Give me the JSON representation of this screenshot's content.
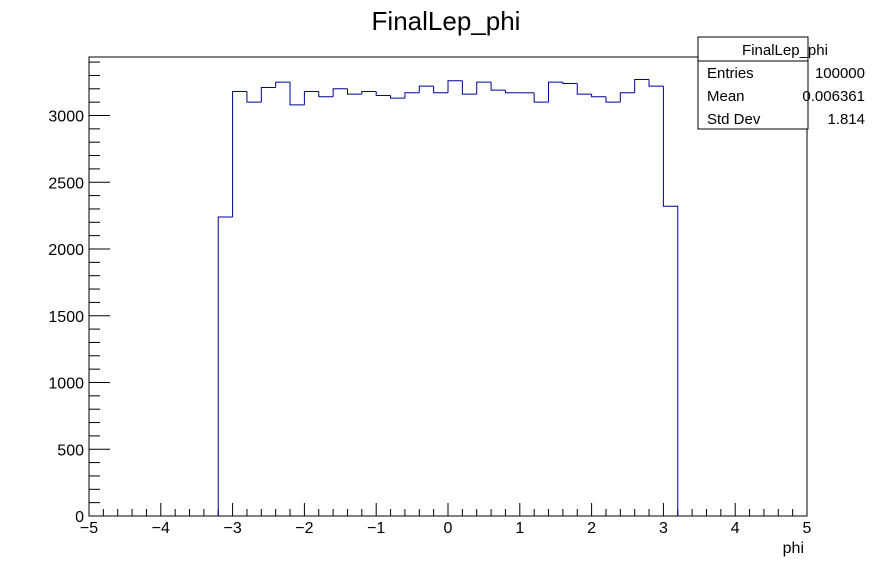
{
  "chart_data": {
    "type": "bar",
    "title": "FinalLep_phi",
    "xlabel": "phi",
    "ylabel": "",
    "xlim": [
      -5,
      5
    ],
    "ylim": [
      0,
      3400
    ],
    "x_ticks": [
      "−5",
      "−4",
      "−3",
      "−2",
      "−1",
      "0",
      "1",
      "2",
      "3",
      "4",
      "5"
    ],
    "y_ticks": [
      "0",
      "500",
      "1000",
      "1500",
      "2000",
      "2500",
      "3000"
    ],
    "line_color": "#000099",
    "bin_width": 0.2,
    "bin_low_edges": [
      -3.2,
      -3.0,
      -2.8,
      -2.6,
      -2.4,
      -2.2,
      -2.0,
      -1.8,
      -1.6,
      -1.4,
      -1.2,
      -1.0,
      -0.8,
      -0.6,
      -0.4,
      -0.2,
      0.0,
      0.2,
      0.4,
      0.6,
      0.8,
      1.0,
      1.2,
      1.4,
      1.6,
      1.8,
      2.0,
      2.2,
      2.4,
      2.6,
      2.8,
      3.0
    ],
    "values": [
      2240,
      3180,
      3100,
      3210,
      3250,
      3080,
      3180,
      3140,
      3200,
      3160,
      3180,
      3150,
      3130,
      3170,
      3220,
      3170,
      3260,
      3160,
      3250,
      3190,
      3170,
      3170,
      3100,
      3250,
      3240,
      3160,
      3140,
      3100,
      3170,
      3270,
      3220,
      2320
    ],
    "stats": {
      "title": "FinalLep_phi",
      "rows": [
        {
          "label": "Entries",
          "value": "100000"
        },
        {
          "label": "Mean",
          "value": "0.006361"
        },
        {
          "label": "Std Dev",
          "value": "1.814"
        }
      ]
    }
  }
}
